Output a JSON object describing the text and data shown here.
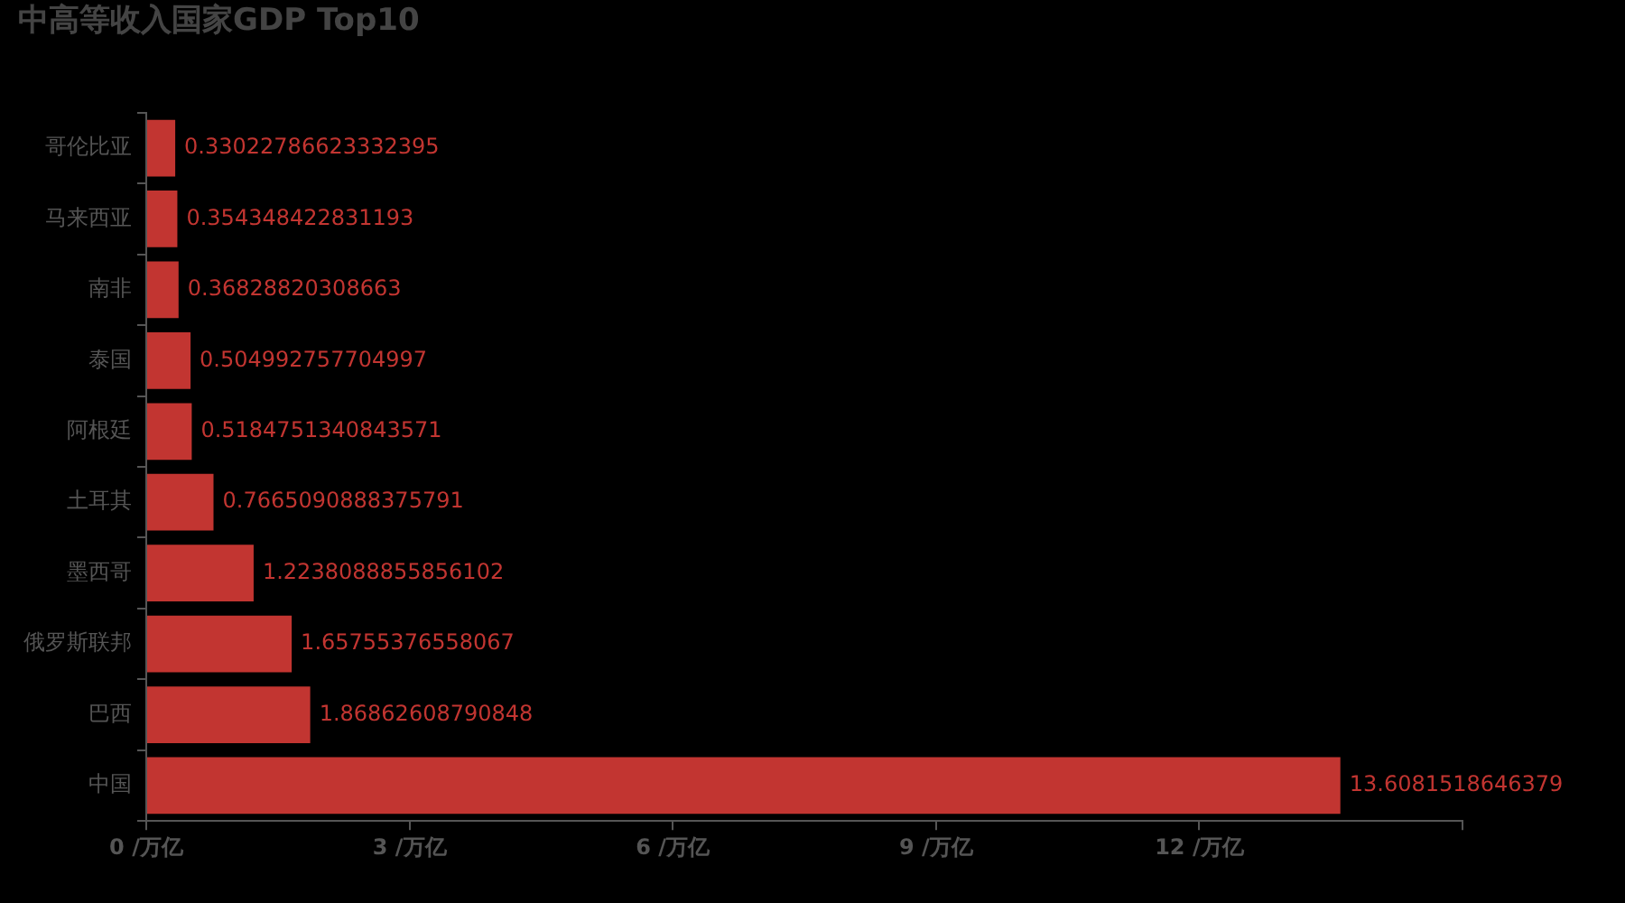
{
  "chart_data": {
    "type": "bar",
    "title": "中高等收入国家GDP Top10",
    "orientation": "horizontal",
    "categories": [
      "哥伦比亚",
      "马来西亚",
      "南非",
      "泰国",
      "阿根廷",
      "土耳其",
      "墨西哥",
      "俄罗斯联邦",
      "巴西",
      "中国"
    ],
    "values": [
      0.33022786623332395,
      0.354348422831193,
      0.36828820308663,
      0.504992757704997,
      0.5184751340843571,
      0.7665090888375791,
      1.2238088855856102,
      1.65755376558067,
      1.86862608790848,
      13.6081518646379
    ],
    "color": "#c23531",
    "xlim": [
      0,
      15
    ],
    "xticks": [
      {
        "value": 0,
        "label": "0 /万亿"
      },
      {
        "value": 3,
        "label": "3 /万亿"
      },
      {
        "value": 6,
        "label": "6 /万亿"
      },
      {
        "value": 9,
        "label": "9 /万亿"
      },
      {
        "value": 12,
        "label": "12 /万亿"
      },
      {
        "value": 15,
        "label": null
      }
    ],
    "data_labels": true,
    "grid": false,
    "legend": false
  }
}
